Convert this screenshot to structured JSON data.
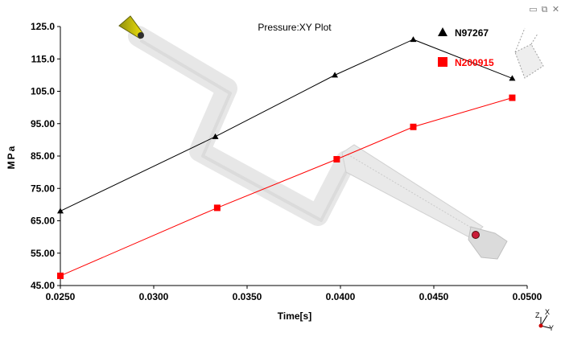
{
  "window_controls": {
    "minimize_icon": "minimize-icon",
    "restore_icon": "restore-icon",
    "close_icon": "close-icon"
  },
  "chart_data": {
    "type": "line",
    "title": "Pressure:XY Plot",
    "xlabel": "Time[s]",
    "ylabel": "MPa",
    "xlim": [
      0.025,
      0.05
    ],
    "ylim": [
      45,
      125
    ],
    "x_ticks": [
      "0.0250",
      "0.0300",
      "0.0350",
      "0.0400",
      "0.0450",
      "0.0500"
    ],
    "y_ticks": [
      "45.00",
      "55.00",
      "65.00",
      "75.00",
      "85.00",
      "95.00",
      "105.0",
      "115.0",
      "125.0"
    ],
    "legend_position": "top-right",
    "series": [
      {
        "name": "N97267",
        "color": "#000000",
        "marker": "triangle",
        "x": [
          0.025,
          0.0333,
          0.0397,
          0.0439,
          0.0492
        ],
        "y": [
          68.0,
          91.0,
          110.0,
          121.0,
          109.0
        ]
      },
      {
        "name": "N200915",
        "color": "#ff0000",
        "marker": "square",
        "x": [
          0.025,
          0.0334,
          0.0398,
          0.0439,
          0.0492
        ],
        "y": [
          48.0,
          69.0,
          84.0,
          94.0,
          103.0
        ]
      }
    ],
    "triad_labels": [
      "X",
      "Z",
      "Y"
    ]
  }
}
